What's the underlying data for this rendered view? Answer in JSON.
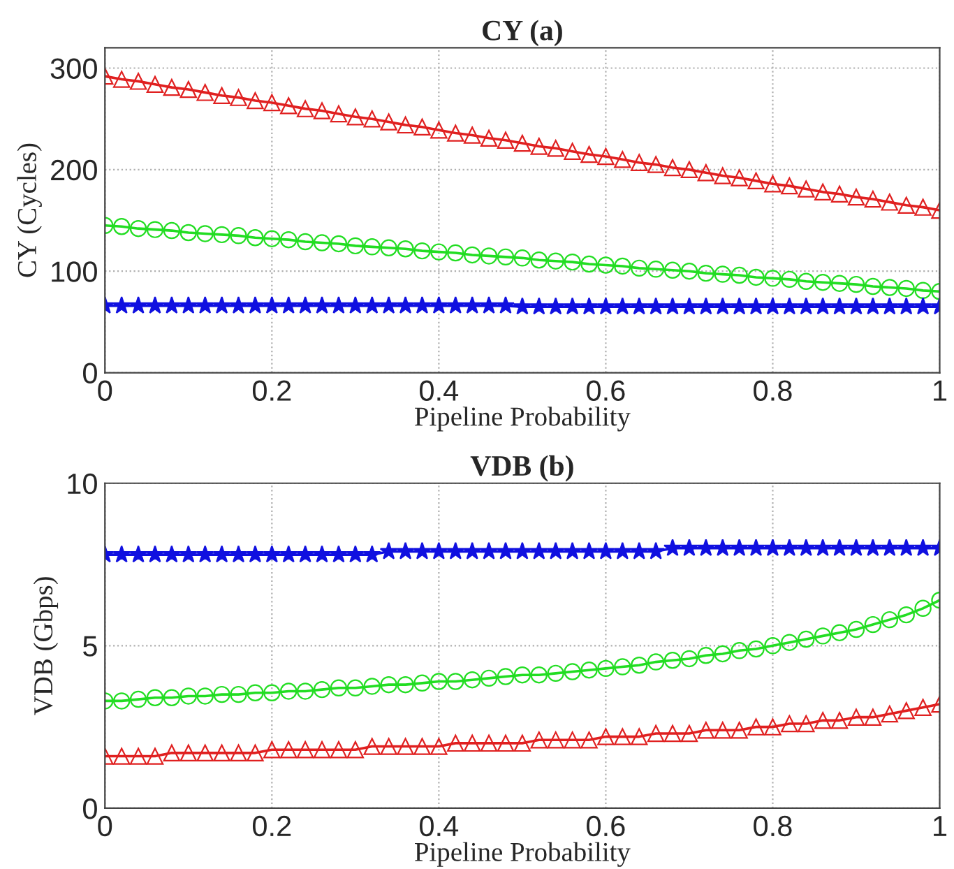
{
  "chart_data": [
    {
      "type": "line",
      "title": "CY (a)",
      "xlabel": "Pipeline Probability",
      "ylabel": "CY (Cycles)",
      "x": [
        0,
        0.02,
        0.04,
        0.06,
        0.08,
        0.1,
        0.12,
        0.14,
        0.16,
        0.18,
        0.2,
        0.22,
        0.24,
        0.26,
        0.28,
        0.3,
        0.32,
        0.34,
        0.36,
        0.38,
        0.4,
        0.42,
        0.44,
        0.46,
        0.48,
        0.5,
        0.52,
        0.54,
        0.56,
        0.58,
        0.6,
        0.62,
        0.64,
        0.66,
        0.68,
        0.7,
        0.72,
        0.74,
        0.76,
        0.78,
        0.8,
        0.82,
        0.84,
        0.86,
        0.88,
        0.9,
        0.92,
        0.94,
        0.96,
        0.98,
        1
      ],
      "series": [
        {
          "color": "#e02020",
          "marker": "triangle",
          "values": [
            292,
            289,
            287,
            284,
            281,
            279,
            276,
            273,
            271,
            268,
            266,
            263,
            260,
            258,
            255,
            252,
            250,
            247,
            244,
            242,
            239,
            236,
            234,
            231,
            229,
            226,
            223,
            221,
            218,
            215,
            213,
            210,
            207,
            205,
            202,
            200,
            197,
            194,
            192,
            189,
            186,
            184,
            181,
            178,
            176,
            173,
            171,
            168,
            165,
            163,
            160
          ]
        },
        {
          "color": "#22dd22",
          "marker": "circle",
          "values": [
            145,
            144,
            142,
            141,
            140,
            138,
            137,
            136,
            135,
            133,
            132,
            131,
            129,
            128,
            127,
            125,
            124,
            123,
            122,
            120,
            119,
            118,
            116,
            115,
            114,
            113,
            111,
            110,
            109,
            107,
            106,
            105,
            103,
            102,
            101,
            100,
            98,
            97,
            96,
            94,
            93,
            92,
            90,
            89,
            88,
            87,
            85,
            84,
            83,
            81,
            80
          ]
        },
        {
          "color": "#1010e0",
          "marker": "star",
          "values": [
            66,
            66,
            66,
            66,
            66,
            66,
            66,
            66,
            66,
            66,
            66,
            66,
            66,
            66,
            66,
            66,
            66,
            66,
            66,
            66,
            66,
            66,
            66,
            66,
            66,
            65,
            65,
            65,
            65,
            65,
            65,
            65,
            65,
            65,
            65,
            65,
            65,
            65,
            65,
            65,
            65,
            65,
            65,
            65,
            65,
            65,
            65,
            65,
            65,
            65,
            65
          ]
        }
      ],
      "xlim": [
        0,
        1
      ],
      "xticks": [
        0,
        0.2,
        0.4,
        0.6,
        0.8,
        1
      ],
      "ylim": [
        0,
        320
      ],
      "yticks": [
        0,
        100,
        200,
        300
      ],
      "grid": true,
      "line_style": "solid"
    },
    {
      "type": "line",
      "title": "VDB (b)",
      "xlabel": "Pipeline Probability",
      "ylabel": "VDB (Gbps)",
      "x": [
        0,
        0.02,
        0.04,
        0.06,
        0.08,
        0.1,
        0.12,
        0.14,
        0.16,
        0.18,
        0.2,
        0.22,
        0.24,
        0.26,
        0.28,
        0.3,
        0.32,
        0.34,
        0.36,
        0.38,
        0.4,
        0.42,
        0.44,
        0.46,
        0.48,
        0.5,
        0.52,
        0.54,
        0.56,
        0.58,
        0.6,
        0.62,
        0.64,
        0.66,
        0.68,
        0.7,
        0.72,
        0.74,
        0.76,
        0.78,
        0.8,
        0.82,
        0.84,
        0.86,
        0.88,
        0.9,
        0.92,
        0.94,
        0.96,
        0.98,
        1
      ],
      "series": [
        {
          "color": "#1010e0",
          "marker": "star",
          "values": [
            7.8,
            7.8,
            7.8,
            7.8,
            7.8,
            7.8,
            7.8,
            7.8,
            7.8,
            7.8,
            7.8,
            7.8,
            7.8,
            7.8,
            7.8,
            7.8,
            7.8,
            7.9,
            7.9,
            7.9,
            7.9,
            7.9,
            7.9,
            7.9,
            7.9,
            7.9,
            7.9,
            7.9,
            7.9,
            7.9,
            7.9,
            7.9,
            7.9,
            7.9,
            8.0,
            8.0,
            8.0,
            8.0,
            8.0,
            8.0,
            8.0,
            8.0,
            8.0,
            8.0,
            8.0,
            8.0,
            8.0,
            8.0,
            8.0,
            8.0,
            8.0
          ]
        },
        {
          "color": "#22dd22",
          "marker": "circle",
          "values": [
            3.3,
            3.3,
            3.35,
            3.4,
            3.4,
            3.45,
            3.45,
            3.5,
            3.5,
            3.55,
            3.55,
            3.6,
            3.6,
            3.65,
            3.7,
            3.7,
            3.75,
            3.8,
            3.8,
            3.85,
            3.9,
            3.9,
            3.95,
            4.0,
            4.05,
            4.1,
            4.1,
            4.15,
            4.2,
            4.25,
            4.3,
            4.35,
            4.4,
            4.5,
            4.55,
            4.6,
            4.7,
            4.75,
            4.85,
            4.9,
            5.0,
            5.1,
            5.2,
            5.3,
            5.4,
            5.5,
            5.65,
            5.8,
            5.95,
            6.15,
            6.4
          ]
        },
        {
          "color": "#e02020",
          "marker": "triangle",
          "values": [
            1.6,
            1.6,
            1.6,
            1.6,
            1.7,
            1.7,
            1.7,
            1.7,
            1.7,
            1.7,
            1.8,
            1.8,
            1.8,
            1.8,
            1.8,
            1.8,
            1.9,
            1.9,
            1.9,
            1.9,
            1.9,
            2.0,
            2.0,
            2.0,
            2.0,
            2.0,
            2.1,
            2.1,
            2.1,
            2.1,
            2.2,
            2.2,
            2.2,
            2.3,
            2.3,
            2.3,
            2.4,
            2.4,
            2.4,
            2.5,
            2.5,
            2.6,
            2.6,
            2.7,
            2.7,
            2.8,
            2.8,
            2.9,
            3.0,
            3.1,
            3.2
          ]
        }
      ],
      "xlim": [
        0,
        1
      ],
      "xticks": [
        0,
        0.2,
        0.4,
        0.6,
        0.8,
        1
      ],
      "ylim": [
        0,
        10
      ],
      "yticks": [
        0,
        5,
        10
      ],
      "grid": true,
      "line_style": "solid"
    }
  ]
}
